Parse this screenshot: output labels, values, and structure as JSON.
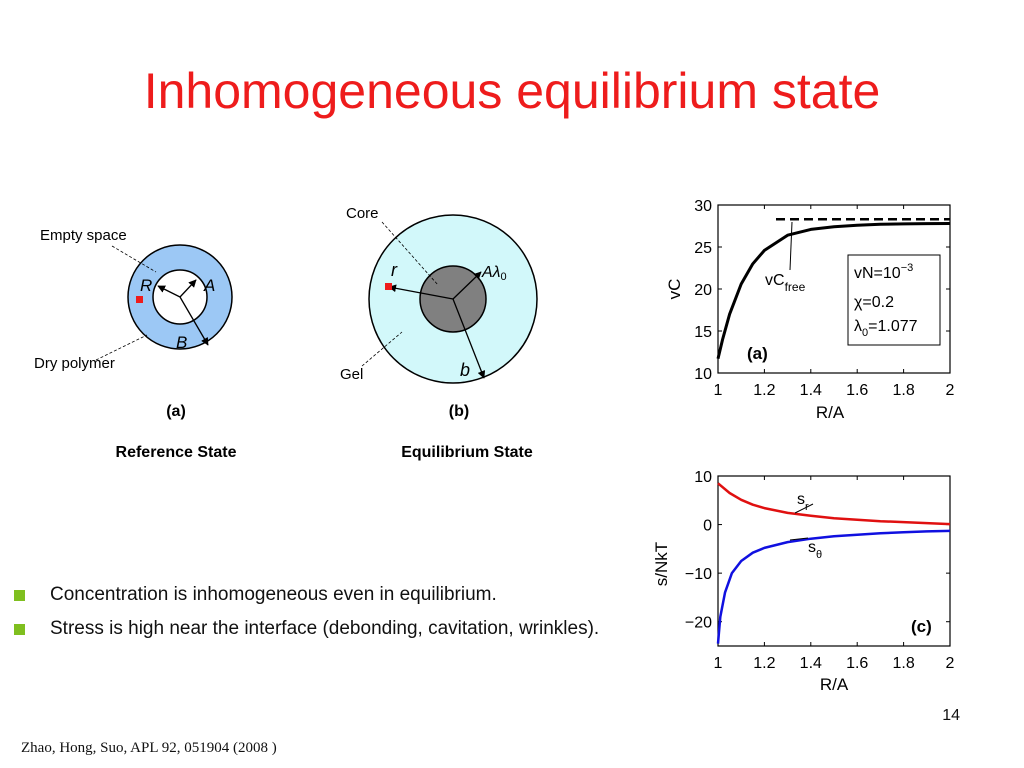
{
  "slide": {
    "title": "Inhomogeneous equilibrium state",
    "page_number": "14",
    "citation": "Zhao, Hong, Suo, APL 92, 051904 (2008 )"
  },
  "bullets": [
    "Concentration is inhomogeneous even in equilibrium.",
    "Stress is high near the interface (debonding, cavitation, wrinkles)."
  ],
  "colors": {
    "title": "#ee1c1c",
    "bullet_marker": "#7fbf1f",
    "dry_polymer": "#9cc8f5",
    "gel": "#d2f8fa",
    "core": "#808080",
    "marker": "#ee1c1c",
    "s_r": "#e01010",
    "s_theta": "#1010e0"
  },
  "diagram": {
    "a": {
      "label_empty_space": "Empty space",
      "label_dry_polymer": "Dry polymer",
      "R": "R",
      "A": "A",
      "B": "B",
      "panel": "(a)",
      "caption": "Reference State"
    },
    "b": {
      "label_core": "Core",
      "label_gel": "Gel",
      "r": "r",
      "A": "A",
      "lambda": "λ",
      "sub0": "0",
      "b": "b",
      "panel": "(b)",
      "caption": "Equilibrium State"
    }
  },
  "chart_data": [
    {
      "type": "line",
      "panel_label": "(a)",
      "xlabel": "R/A",
      "ylabel": "vC",
      "xlim": [
        1,
        2
      ],
      "ylim": [
        10,
        30
      ],
      "xticks": [
        "1",
        "1.2",
        "1.4",
        "1.6",
        "1.8",
        "2"
      ],
      "yticks": [
        "10",
        "15",
        "20",
        "25",
        "30"
      ],
      "series": [
        {
          "name": "",
          "style": "solid",
          "x": [
            1.0,
            1.02,
            1.05,
            1.1,
            1.15,
            1.2,
            1.3,
            1.4,
            1.5,
            1.6,
            1.7,
            1.8,
            1.9,
            2.0
          ],
          "y": [
            11.7,
            14.0,
            17.0,
            20.6,
            23.0,
            24.6,
            26.4,
            27.1,
            27.4,
            27.6,
            27.7,
            27.75,
            27.78,
            27.8
          ]
        },
        {
          "name": "vC_free",
          "style": "dashed",
          "x": [
            1.25,
            2.0
          ],
          "y": [
            28.3,
            28.3
          ]
        }
      ],
      "annotation": {
        "main": "vC",
        "sub": "free"
      },
      "parameters": {
        "line1": "vN=10",
        "line1_sup": "−3",
        "line2": "χ=0.2",
        "line3_main": "λ",
        "line3_sub": "0",
        "line3_rest": "=1.077"
      }
    },
    {
      "type": "line",
      "panel_label": "(c)",
      "xlabel": "R/A",
      "ylabel": "s/NkT",
      "xlim": [
        1,
        2
      ],
      "ylim": [
        -25,
        10
      ],
      "xticks": [
        "1",
        "1.2",
        "1.4",
        "1.6",
        "1.8",
        "2"
      ],
      "yticks": [
        "10",
        "0",
        "−10",
        "−20"
      ],
      "series": [
        {
          "name": "s_r",
          "label_main": "s",
          "label_sub": "r",
          "x": [
            1.0,
            1.05,
            1.1,
            1.15,
            1.2,
            1.3,
            1.4,
            1.5,
            1.6,
            1.7,
            1.8,
            1.9,
            2.0
          ],
          "y": [
            8.5,
            6.5,
            5.1,
            4.1,
            3.4,
            2.4,
            1.8,
            1.3,
            1.0,
            0.7,
            0.5,
            0.3,
            0.1
          ]
        },
        {
          "name": "s_θ",
          "label_main": "s",
          "label_sub": "θ",
          "x": [
            1.0,
            1.01,
            1.03,
            1.06,
            1.1,
            1.15,
            1.2,
            1.3,
            1.4,
            1.5,
            1.6,
            1.7,
            1.8,
            1.9,
            2.0
          ],
          "y": [
            -24.5,
            -19.0,
            -14.0,
            -10.0,
            -7.5,
            -5.8,
            -4.8,
            -3.6,
            -2.9,
            -2.4,
            -2.1,
            -1.8,
            -1.6,
            -1.4,
            -1.3
          ]
        }
      ]
    }
  ]
}
